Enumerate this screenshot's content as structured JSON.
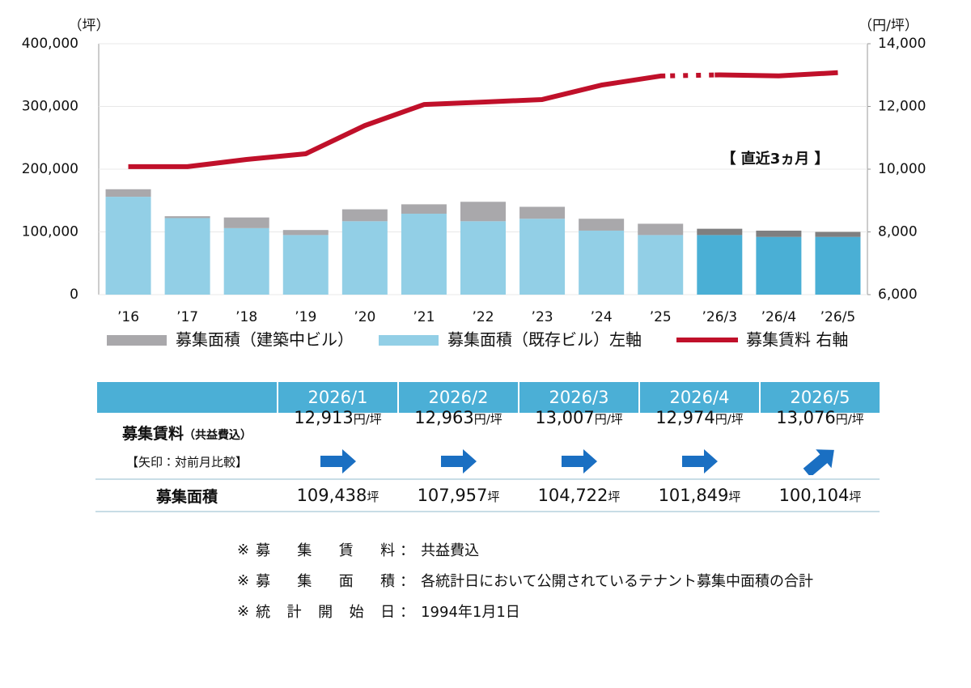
{
  "chart_data": {
    "type": "bar",
    "y_unit": "（坪）",
    "y2_unit": "（円/坪）",
    "annotation": "【 直近3ヵ月 】",
    "categories": [
      "’16",
      "’17",
      "’18",
      "’19",
      "’20",
      "’21",
      "’22",
      "’23",
      "’24",
      "’25",
      "’26/3",
      "’26/4",
      "’26/5"
    ],
    "series": [
      {
        "name": "募集面積（既存ビル）左軸",
        "type": "bar",
        "color": "#92cfe6",
        "colors": [
          "#92cfe6",
          "#92cfe6",
          "#92cfe6",
          "#92cfe6",
          "#92cfe6",
          "#92cfe6",
          "#92cfe6",
          "#92cfe6",
          "#92cfe6",
          "#92cfe6",
          "#4aafd5",
          "#4aafd5",
          "#4aafd5"
        ],
        "values": [
          156000,
          122000,
          106000,
          95000,
          117000,
          129000,
          117000,
          121000,
          102000,
          95000,
          95000,
          92000,
          92000
        ]
      },
      {
        "name": "募集面積（建築中ビル）",
        "type": "bar",
        "color": "#a9a8ab",
        "colors": [
          "#a9a8ab",
          "#a9a8ab",
          "#a9a8ab",
          "#a9a8ab",
          "#a9a8ab",
          "#a9a8ab",
          "#a9a8ab",
          "#a9a8ab",
          "#a9a8ab",
          "#a9a8ab",
          "#7f7f80",
          "#7f7f80",
          "#7f7f80"
        ],
        "values": [
          12000,
          3000,
          17000,
          8000,
          19000,
          15000,
          31000,
          19000,
          19000,
          18000,
          10000,
          10000,
          8000
        ]
      },
      {
        "name": "募集賃料 右軸",
        "type": "line",
        "axis": "y2",
        "color": "#c0102a",
        "values": [
          10080,
          10080,
          10310,
          10490,
          11390,
          12060,
          12140,
          12220,
          12680,
          12970,
          13007,
          12974,
          13076
        ]
      }
    ],
    "ylim": [
      0,
      400000
    ],
    "yticks": [
      0,
      {
        "value": 100000,
        "label": "100,000"
      },
      {
        "value": 200000,
        "label": "200,000"
      },
      {
        "value": 300000,
        "label": "300,000"
      },
      {
        "value": 400000,
        "label": "400,000"
      }
    ],
    "y2lim": [
      6000,
      14000
    ],
    "y2ticks": [
      {
        "value": 6000,
        "label": "6,000"
      },
      {
        "value": 8000,
        "label": "8,000"
      },
      {
        "value": 10000,
        "label": "10,000"
      },
      {
        "value": 12000,
        "label": "12,000"
      },
      {
        "value": 14000,
        "label": "14,000"
      }
    ],
    "grid": true
  },
  "table": {
    "columns": [
      "2026/1",
      "2026/2",
      "2026/3",
      "2026/4",
      "2026/5"
    ],
    "rent_label": "募集賃料",
    "rent_note": "（共益費込）",
    "rent_sub": "【矢印：対前月比較】",
    "rent": [
      "12,913",
      "12,963",
      "13,007",
      "12,974",
      "13,076"
    ],
    "rent_unit": "円/坪",
    "area_label": "募集面積",
    "area": [
      "109,438",
      "107,957",
      "104,722",
      "101,849",
      "100,104"
    ],
    "area_unit": "坪"
  },
  "notes": [
    {
      "mark": "※",
      "label": "募集賃料",
      "sep": "：",
      "text": "共益費込"
    },
    {
      "mark": "※",
      "label": "募集面積",
      "sep": "：",
      "text": "各統計日において公開されているテナント募集中面積の合計"
    },
    {
      "mark": "※",
      "label": "統計開始日",
      "sep": "：",
      "text": "1994年1月1日"
    }
  ]
}
